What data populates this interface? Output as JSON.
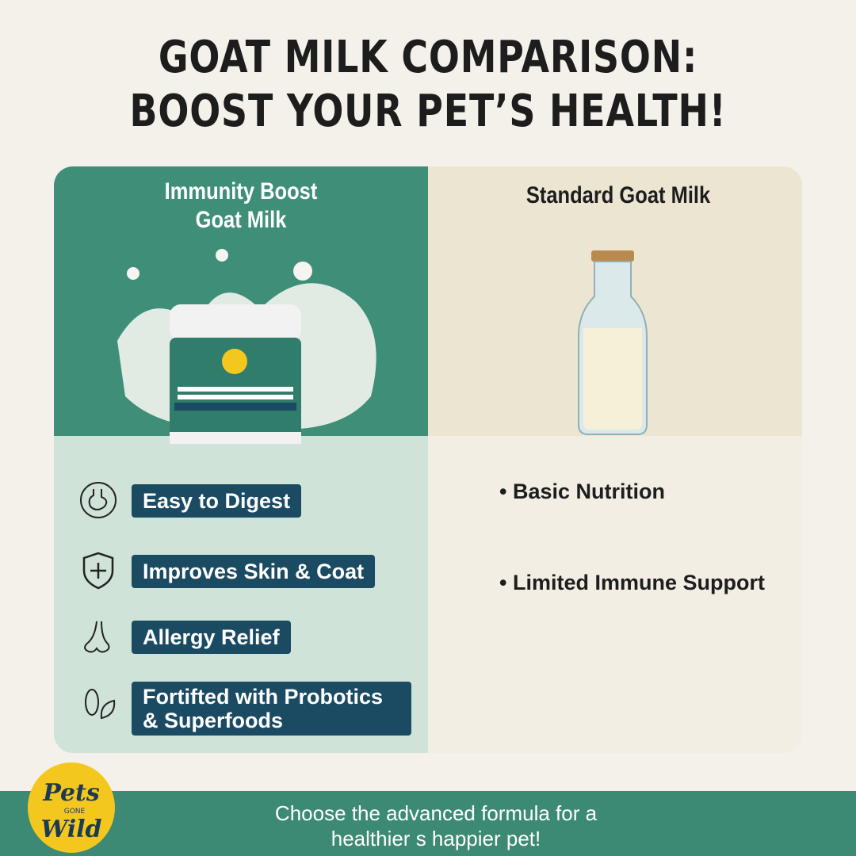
{
  "header": {
    "line1": "GOAT MILK COMPARISON:",
    "line2": "BOOST YOUR PET’S HEALTH!"
  },
  "left": {
    "title_line1": "Immunity Boost",
    "title_line2": "Goat Milk",
    "features": [
      {
        "icon": "stomach-icon",
        "label": "Easy to Digest"
      },
      {
        "icon": "shield-plus-icon",
        "label": "Improves Skin & Coat"
      },
      {
        "icon": "nose-icon",
        "label": "Allergy Relief"
      },
      {
        "icon": "probiotic-leaf-icon",
        "label": "Fortifted with Probotics\n& Superfoods"
      }
    ]
  },
  "right": {
    "title": "Standard Goat Milk",
    "bullets": [
      "Basic Nutrition",
      "Limited Immune Support"
    ]
  },
  "footer": {
    "line1": "Choose the advanced formula for a",
    "line2": "healthier s happier pet!",
    "logo_text": "Pets Gone Wild"
  },
  "colors": {
    "green": "#3f8f78",
    "light_green": "#cfe3d8",
    "pill": "#1b4b62",
    "beige": "#ece5d2",
    "logo_yellow": "#f4c71f"
  }
}
